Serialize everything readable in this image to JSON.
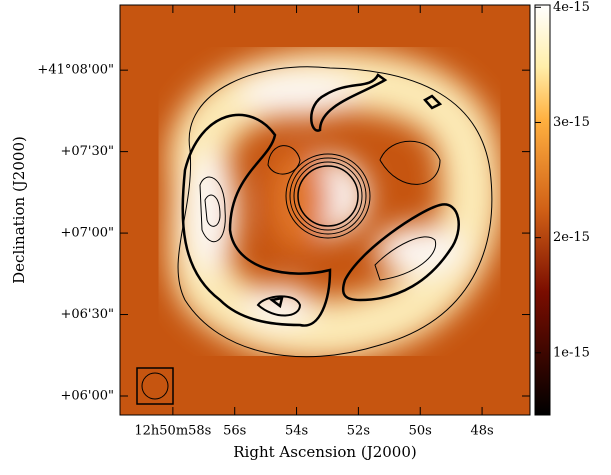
{
  "chart_data": {
    "type": "image",
    "xlabel": "Right Ascension (J2000)",
    "ylabel": "Declination (J2000)",
    "xlim": [
      59.71,
      46.45
    ],
    "xticks": [
      {
        "value": 58,
        "label": "12h50m58s"
      },
      {
        "value": 56,
        "label": "56s"
      },
      {
        "value": 54,
        "label": "54s"
      },
      {
        "value": 52,
        "label": "52s"
      },
      {
        "value": 50,
        "label": "50s"
      },
      {
        "value": 48,
        "label": "48s"
      }
    ],
    "ylim": [
      -7,
      144
    ],
    "yticks": [
      {
        "value": 0,
        "label": "+06'00\""
      },
      {
        "value": 30,
        "label": "+06'30\""
      },
      {
        "value": 60,
        "label": "+07'00\""
      },
      {
        "value": 90,
        "label": "+07'30\""
      },
      {
        "value": 120,
        "label": "+41°08'00\""
      }
    ],
    "colorbar": {
      "lim": [
        4.6e-16,
        4.02e-15
      ],
      "ticks": [
        1e-15,
        2e-15,
        3e-15,
        4e-15
      ]
    }
  }
}
